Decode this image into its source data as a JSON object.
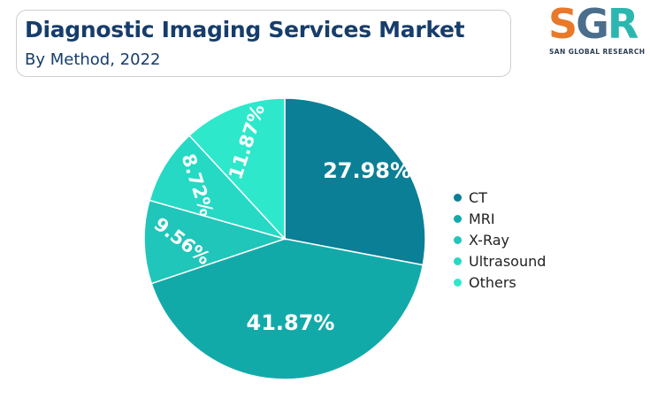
{
  "header": {
    "title": "Diagnostic Imaging Services Market",
    "subtitle": "By Method, 2022"
  },
  "logo": {
    "letters": [
      "S",
      "G",
      "R"
    ],
    "name": "SAN GLOBAL RESEARCH",
    "colors": [
      "#e8792a",
      "#4a6e8c",
      "#2bb7b0"
    ]
  },
  "chart_data": {
    "type": "pie",
    "title": "Diagnostic Imaging Services Market",
    "subtitle": "By Method, 2022",
    "categories": [
      "CT",
      "MRI",
      "X-Ray",
      "Ultrasound",
      "Others"
    ],
    "values": [
      27.98,
      41.87,
      9.56,
      8.72,
      11.87
    ],
    "labels": [
      "27.98%",
      "41.87%",
      "9.56%",
      "8.72%",
      "11.87%"
    ],
    "colors": [
      "#0a7f96",
      "#12aaa9",
      "#1fc6b9",
      "#25d9c4",
      "#2ee8cc"
    ],
    "start_angle_deg": 0,
    "direction": "clockwise",
    "legend_position": "right"
  }
}
